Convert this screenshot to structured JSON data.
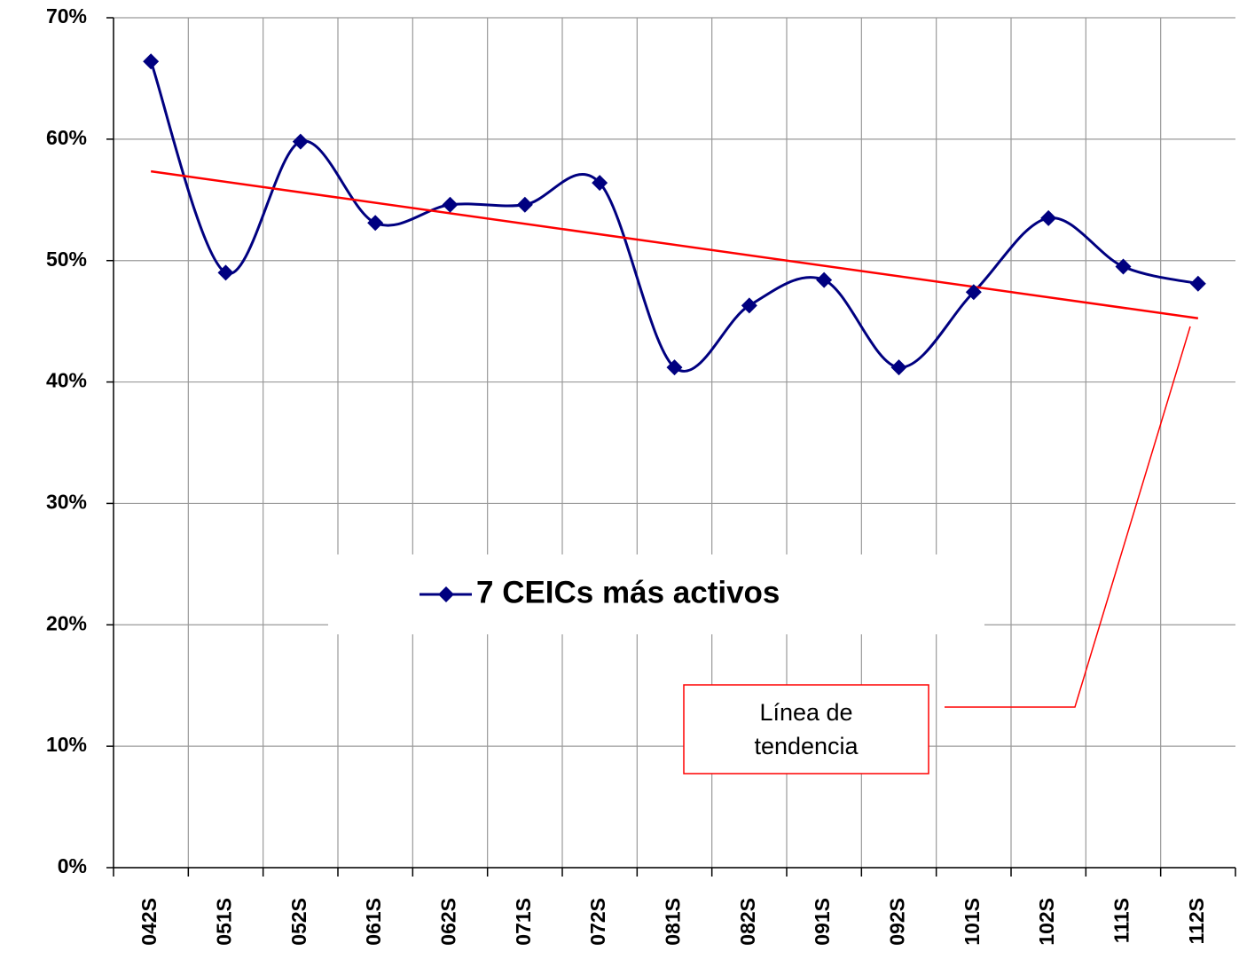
{
  "chart_data": {
    "type": "line",
    "categories": [
      "042S",
      "051S",
      "052S",
      "061S",
      "062S",
      "071S",
      "072S",
      "081S",
      "082S",
      "091S",
      "092S",
      "101S",
      "102S",
      "111S",
      "112S"
    ],
    "series": [
      {
        "name": "7 CEICs más activos",
        "color": "#000080",
        "values": [
          66.4,
          49.0,
          59.8,
          53.1,
          54.6,
          54.6,
          56.4,
          41.2,
          46.3,
          48.4,
          41.2,
          47.4,
          53.5,
          49.5,
          48.1
        ]
      }
    ],
    "trendline": {
      "color": "#ff0000"
    },
    "annotation": [
      "Línea de",
      "tendencia"
    ],
    "ylim": [
      0,
      70
    ],
    "yticks": [
      {
        "value": 0,
        "label": "0%"
      },
      {
        "value": 10,
        "label": "10%"
      },
      {
        "value": 20,
        "label": "20%"
      },
      {
        "value": 30,
        "label": "30%"
      },
      {
        "value": 40,
        "label": "40%"
      },
      {
        "value": 50,
        "label": "50%"
      },
      {
        "value": 60,
        "label": "60%"
      },
      {
        "value": 70,
        "label": "70%"
      }
    ],
    "grid": true
  }
}
